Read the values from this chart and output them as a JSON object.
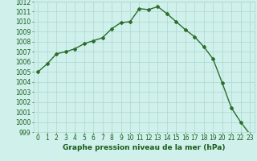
{
  "x": [
    0,
    1,
    2,
    3,
    4,
    5,
    6,
    7,
    8,
    9,
    10,
    11,
    12,
    13,
    14,
    15,
    16,
    17,
    18,
    19,
    20,
    21,
    22,
    23
  ],
  "y": [
    1005.0,
    1005.8,
    1006.8,
    1007.0,
    1007.3,
    1007.8,
    1008.1,
    1008.4,
    1009.3,
    1009.9,
    1010.0,
    1011.3,
    1011.2,
    1011.5,
    1010.8,
    1010.0,
    1009.2,
    1008.5,
    1007.5,
    1006.3,
    1003.9,
    1001.4,
    1000.0,
    998.8
  ],
  "xlim": [
    -0.5,
    23.5
  ],
  "ylim": [
    999,
    1012
  ],
  "yticks": [
    999,
    1000,
    1001,
    1002,
    1003,
    1004,
    1005,
    1006,
    1007,
    1008,
    1009,
    1010,
    1011,
    1012
  ],
  "xticks": [
    0,
    1,
    2,
    3,
    4,
    5,
    6,
    7,
    8,
    9,
    10,
    11,
    12,
    13,
    14,
    15,
    16,
    17,
    18,
    19,
    20,
    21,
    22,
    23
  ],
  "xlabel": "Graphe pression niveau de la mer (hPa)",
  "line_color": "#2d6e2d",
  "marker": "D",
  "marker_size": 2.0,
  "bg_color": "#cff0eb",
  "grid_color": "#aad8d0",
  "tick_fontsize": 5.5,
  "xlabel_fontsize": 6.5,
  "label_color": "#1a5c1a",
  "line_width": 1.0
}
